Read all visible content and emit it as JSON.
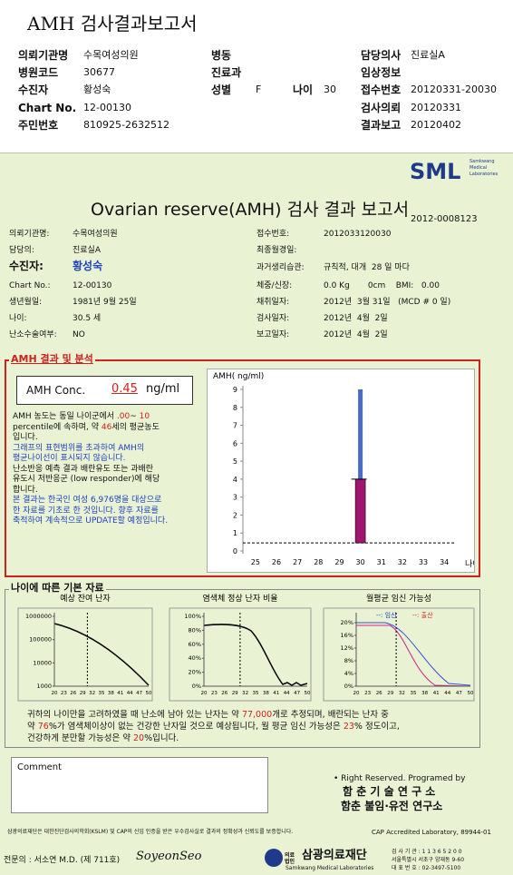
{
  "header": {
    "title": "AMH 검사결과보고서",
    "col1": [
      [
        "의뢰기관명",
        "수목여성의원"
      ],
      [
        "병원코드",
        "30677"
      ],
      [
        "수진자",
        "황성숙"
      ],
      [
        "Chart No.",
        "12-00130"
      ],
      [
        "주민번호",
        "810925-2632512"
      ]
    ],
    "col2": [
      [
        "병동"
      ],
      [
        "진료과"
      ],
      [
        "성별",
        "F",
        "나이",
        "30"
      ]
    ],
    "col3": [
      [
        "담당의사",
        "진료실A"
      ],
      [
        "임상정보"
      ],
      [
        "접수번호",
        "20120331-20030"
      ],
      [
        "검사의뢰",
        "20120331"
      ],
      [
        "결과보고",
        "20120402"
      ]
    ]
  },
  "report": {
    "logo": "SML",
    "logo_sub": [
      "Samkwang",
      "Medical",
      "Laboratories"
    ],
    "title": "Ovarian reserve(AMH) 검사 결과 보고서",
    "report_no": "2012-0008123",
    "left_info": [
      [
        "의뢰기관명:",
        "수목여성의원"
      ],
      [
        "담당의:",
        "진료실A"
      ],
      [
        "수진자:",
        "황성숙"
      ],
      [
        "Chart No.:",
        "12-00130"
      ],
      [
        "생년월일:",
        "1981년 9월 25일"
      ],
      [
        "나이:",
        "30.5 세"
      ],
      [
        "난소수술여부:",
        "NO"
      ]
    ],
    "right_info": [
      [
        "접수번호:",
        "2012033120030"
      ],
      [
        "최종월경일:"
      ],
      [
        "과거생리습관:",
        "규칙적, 대개  28 일 마다"
      ],
      [
        "체중/신장:",
        "0.0 Kg       0cm    BMI:   0.00"
      ],
      [
        "채취일자:",
        "2012년  3월 31일   (MCD # 0 일)"
      ],
      [
        "검사일자:",
        "2012년  4월  2일"
      ],
      [
        "보고일자:",
        "2012년  4월  2일"
      ]
    ]
  },
  "amh": {
    "section_title": "AMH 결과 및 분석",
    "conc_label": "AMH Conc.",
    "conc_value": "0.45",
    "unit": "ng/ml",
    "notes": [
      [
        "AMH 농도는 동일 나이군에서 ",
        ".00",
        "~ ",
        "10"
      ],
      [
        "percentile에 속하며, 약 ",
        "46",
        "세의 평균농도"
      ],
      [
        "입니다."
      ],
      [
        "그래프의 표현범위를 초과하여 AMH의"
      ],
      [
        "평균나이선이 표시되지 않습니다."
      ],
      [
        "난소반응 예측 결과 배란유도 또는 과배란"
      ],
      [
        "유도시 저반응군 (low responder)에 해당"
      ],
      [
        "합니다."
      ],
      [
        "본 결과는 한국인 여성 6,976명을 대상으로"
      ],
      [
        "한 자료를 기초로 한 것입니다. 향후 자료를"
      ],
      [
        "축적하여 계속적으로 UPDATE할 예정입니다."
      ]
    ]
  },
  "amh_chart": {
    "y_label": "AMH( ng/ml)",
    "x_label": "나이",
    "ylim": [
      0,
      9
    ],
    "yticks": [
      0,
      1,
      2,
      3,
      4,
      5,
      6,
      7,
      8,
      9
    ],
    "xlim": [
      24.4,
      34.9
    ],
    "xticks": [
      25,
      26,
      27,
      28,
      29,
      30,
      31,
      32,
      33,
      34
    ],
    "bar_x": 30,
    "upper_range": [
      4,
      9
    ],
    "upper_color": "#4a6cc4",
    "lower_range": [
      0.45,
      4
    ],
    "lower_color": "#a0156f",
    "reference": 0.45
  },
  "basic": {
    "section_title": "나이에 따른 기본 자료",
    "xlim": [
      20,
      50
    ],
    "xticks": [
      20,
      23,
      26,
      29,
      32,
      35,
      38,
      41,
      44,
      47,
      50
    ],
    "marker_age": 30.5,
    "charts": [
      {
        "title": "예상 잔여 난자",
        "log": true,
        "ylim": [
          1000,
          1000000
        ],
        "yticks": [
          1000000,
          100000,
          10000,
          1000
        ]
      },
      {
        "title": "염색체 정상 난자 비율",
        "ylim": [
          0,
          100
        ],
        "yticks": [
          {
            "value": 100,
            "label": "100%"
          },
          {
            "value": 80,
            "label": "80%"
          },
          {
            "value": 60,
            "label": "60%"
          },
          {
            "value": 40,
            "label": "40%"
          },
          {
            "value": 20,
            "label": "20%"
          },
          {
            "value": 0,
            "label": "0%"
          }
        ]
      },
      {
        "title": "월평균 임신 가능성",
        "ylim": [
          0,
          22
        ],
        "legend": [
          "--: 임신",
          "--: 출산"
        ],
        "yticks": [
          {
            "value": 20,
            "label": "20%"
          },
          {
            "value": 16,
            "label": "16%"
          },
          {
            "value": 12,
            "label": "12%"
          },
          {
            "value": 8,
            "label": "8%"
          },
          {
            "value": 4,
            "label": "4%"
          },
          {
            "value": 0,
            "label": "0%"
          }
        ]
      }
    ],
    "summary": [
      [
        "귀하의 나이만을 고려하였을 때 난소에 남아 있는 난자는 약 ",
        "77,000",
        "개로 추정되며, 배란되는 난자 중"
      ],
      [
        "약 ",
        "76",
        "%가 염색체이상이 없는 건강한 난자일 것으로 예상됩니다, 월 평균 임신 가능성은 ",
        "23",
        "% 정도이고,"
      ],
      [
        "건강하게 분만할 가능성은 약 ",
        "20",
        "%입니다."
      ]
    ]
  },
  "comment": {
    "label": "Comment"
  },
  "credit": [
    "• Right Reserved. Programed by",
    "함 춘 기 술 연 구 소",
    "함춘 불임·유전 연구소"
  ],
  "footer": {
    "notice": "삼광의료재단은 대한진단검사의학회(KSLM) 및 CAP의 신임 인증을 받은 우수검사실로 결과의 정확성과 신뢰도를 보증합니다.",
    "cap": "CAP Accredited Laboratory, 89944-01",
    "doctor": "전문의 : 서소연 M.D. (제 711호)",
    "signature": "SoyeonSeo",
    "org_prefix": "의료법인",
    "org": "삼광의료재단",
    "org_en": "Samkwang Medical Laboratories",
    "contact": [
      "검 사 기 관 : 1 1 3 6 5 2 0 0",
      "서울특별시 서초구 양재동 9-60",
      "대 표 번 호 : 02-3497-5100"
    ]
  }
}
